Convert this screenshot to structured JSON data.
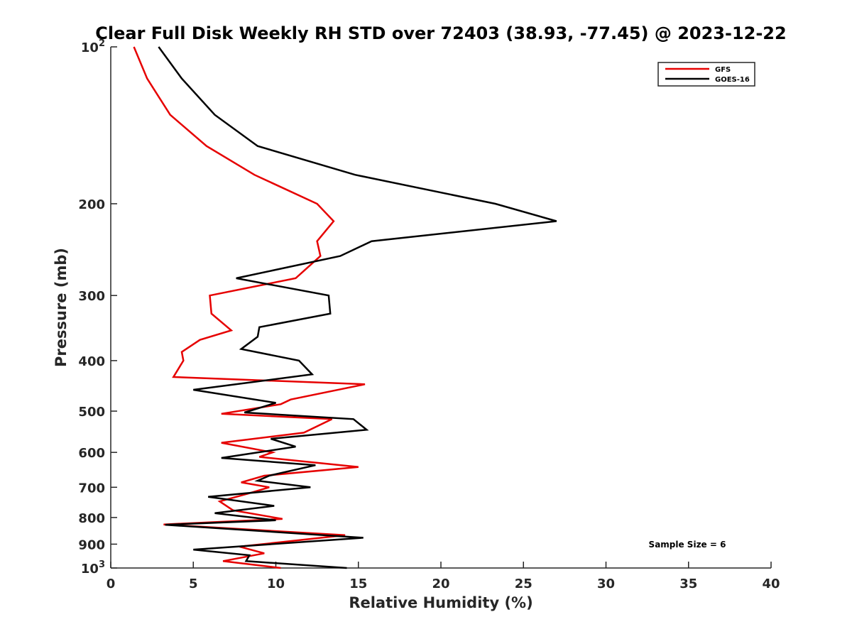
{
  "chart_data": {
    "type": "line",
    "title": "Clear Full Disk Weekly RH STD over 72403 (38.93, -77.45) @ 2023-12-22",
    "xlabel": "Relative Humidity (%)",
    "ylabel": "Pressure (mb)",
    "xlim": [
      0,
      40
    ],
    "ylim": [
      100,
      1000
    ],
    "y_scale": "log",
    "y_reversed": true,
    "grid": false,
    "legend_position": "top-right",
    "x_ticks": [
      {
        "value": 0,
        "label": "0"
      },
      {
        "value": 5,
        "label": "5"
      },
      {
        "value": 10,
        "label": "10"
      },
      {
        "value": 15,
        "label": "15"
      },
      {
        "value": 20,
        "label": "20"
      },
      {
        "value": 25,
        "label": "25"
      },
      {
        "value": 30,
        "label": "30"
      },
      {
        "value": 35,
        "label": "35"
      },
      {
        "value": 40,
        "label": "40"
      }
    ],
    "y_ticks": [
      {
        "value": 100,
        "label": "10",
        "sup": "2"
      },
      {
        "value": 200,
        "label": "200"
      },
      {
        "value": 300,
        "label": "300"
      },
      {
        "value": 400,
        "label": "400"
      },
      {
        "value": 500,
        "label": "500"
      },
      {
        "value": 600,
        "label": "600"
      },
      {
        "value": 700,
        "label": "700"
      },
      {
        "value": 800,
        "label": "800"
      },
      {
        "value": 900,
        "label": "900"
      },
      {
        "value": 1000,
        "label": "10",
        "sup": "3"
      }
    ],
    "annotation": "Sample Size = 6",
    "series": [
      {
        "name": "GFS",
        "color": "#e60000",
        "points": [
          [
            1.4,
            100
          ],
          [
            2.2,
            115
          ],
          [
            3.6,
            135
          ],
          [
            5.8,
            155
          ],
          [
            8.7,
            176
          ],
          [
            12.5,
            200
          ],
          [
            13.5,
            216
          ],
          [
            12.5,
            236
          ],
          [
            12.7,
            252
          ],
          [
            11.2,
            278
          ],
          [
            6.0,
            300
          ],
          [
            6.1,
            325
          ],
          [
            7.3,
            350
          ],
          [
            5.4,
            365
          ],
          [
            4.3,
            385
          ],
          [
            4.4,
            400
          ],
          [
            3.8,
            430
          ],
          [
            15.4,
            444
          ],
          [
            10.9,
            475
          ],
          [
            10.3,
            485
          ],
          [
            6.7,
            506
          ],
          [
            13.4,
            518
          ],
          [
            11.7,
            550
          ],
          [
            6.7,
            575
          ],
          [
            9.8,
            600
          ],
          [
            9.0,
            612
          ],
          [
            15.0,
            640
          ],
          [
            9.3,
            665
          ],
          [
            7.9,
            685
          ],
          [
            9.6,
            700
          ],
          [
            8.3,
            720
          ],
          [
            6.6,
            745
          ],
          [
            7.4,
            775
          ],
          [
            10.4,
            805
          ],
          [
            3.2,
            825
          ],
          [
            14.2,
            865
          ],
          [
            7.8,
            910
          ],
          [
            9.3,
            937
          ],
          [
            6.8,
            970
          ],
          [
            10.3,
            1000
          ]
        ]
      },
      {
        "name": "GOES-16",
        "color": "#000000",
        "points": [
          [
            2.9,
            100
          ],
          [
            4.3,
            115
          ],
          [
            6.3,
            135
          ],
          [
            8.9,
            155
          ],
          [
            14.8,
            176
          ],
          [
            23.3,
            200
          ],
          [
            27.0,
            216
          ],
          [
            15.8,
            236
          ],
          [
            13.9,
            252
          ],
          [
            7.6,
            278
          ],
          [
            13.2,
            300
          ],
          [
            13.3,
            325
          ],
          [
            9.0,
            345
          ],
          [
            8.9,
            360
          ],
          [
            7.9,
            380
          ],
          [
            11.4,
            400
          ],
          [
            12.2,
            425
          ],
          [
            5.0,
            455
          ],
          [
            10.0,
            482
          ],
          [
            8.1,
            503
          ],
          [
            14.7,
            518
          ],
          [
            15.5,
            543
          ],
          [
            9.7,
            565
          ],
          [
            11.2,
            585
          ],
          [
            6.7,
            615
          ],
          [
            12.4,
            635
          ],
          [
            9.6,
            665
          ],
          [
            8.9,
            680
          ],
          [
            12.1,
            700
          ],
          [
            5.9,
            730
          ],
          [
            9.9,
            760
          ],
          [
            6.3,
            785
          ],
          [
            10.0,
            810
          ],
          [
            3.3,
            826
          ],
          [
            15.3,
            875
          ],
          [
            5.0,
            922
          ],
          [
            8.4,
            945
          ],
          [
            8.2,
            970
          ],
          [
            14.3,
            1000
          ]
        ]
      }
    ]
  }
}
